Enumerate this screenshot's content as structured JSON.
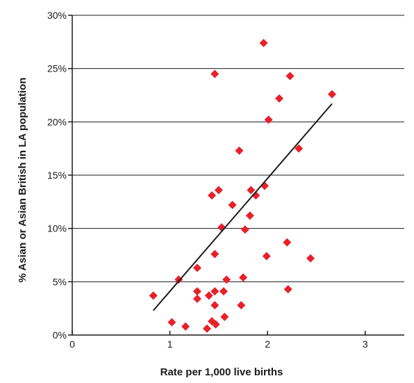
{
  "chart_data": {
    "type": "scatter",
    "title": "",
    "xlabel": "Rate per 1,000 live births",
    "ylabel": "% Asian or Asian British in LA population",
    "xlim": [
      0,
      3.4
    ],
    "ylim": [
      0,
      30
    ],
    "x_ticks": [
      0,
      1,
      2,
      3
    ],
    "x_tick_labels": [
      "0",
      "1",
      "2",
      "3"
    ],
    "y_ticks": [
      0,
      5,
      10,
      15,
      20,
      25,
      30
    ],
    "y_tick_labels": [
      "0%",
      "5%",
      "10%",
      "15%",
      "20%",
      "25%",
      "30%"
    ],
    "grid": "horizontal",
    "marker": "diamond",
    "marker_color": "#e8202a",
    "line_color": "#1a1a1a",
    "trendline": {
      "x": [
        0.83,
        2.66
      ],
      "y": [
        2.3,
        21.7
      ]
    },
    "points": [
      {
        "x": 0.83,
        "y": 3.7
      },
      {
        "x": 1.02,
        "y": 1.2
      },
      {
        "x": 1.09,
        "y": 5.2
      },
      {
        "x": 1.16,
        "y": 0.8
      },
      {
        "x": 1.28,
        "y": 6.3
      },
      {
        "x": 1.28,
        "y": 4.1
      },
      {
        "x": 1.28,
        "y": 3.4
      },
      {
        "x": 1.38,
        "y": 0.6
      },
      {
        "x": 1.4,
        "y": 3.7
      },
      {
        "x": 1.43,
        "y": 1.3
      },
      {
        "x": 1.43,
        "y": 13.1
      },
      {
        "x": 1.46,
        "y": 24.5
      },
      {
        "x": 1.46,
        "y": 7.6
      },
      {
        "x": 1.46,
        "y": 4.1
      },
      {
        "x": 1.46,
        "y": 2.8
      },
      {
        "x": 1.47,
        "y": 1.0
      },
      {
        "x": 1.5,
        "y": 13.6
      },
      {
        "x": 1.53,
        "y": 10.1
      },
      {
        "x": 1.55,
        "y": 4.1
      },
      {
        "x": 1.56,
        "y": 1.7
      },
      {
        "x": 1.58,
        "y": 5.2
      },
      {
        "x": 1.64,
        "y": 12.2
      },
      {
        "x": 1.71,
        "y": 17.3
      },
      {
        "x": 1.73,
        "y": 2.8
      },
      {
        "x": 1.75,
        "y": 5.4
      },
      {
        "x": 1.77,
        "y": 9.9
      },
      {
        "x": 1.82,
        "y": 11.2
      },
      {
        "x": 1.83,
        "y": 13.6
      },
      {
        "x": 1.88,
        "y": 13.1
      },
      {
        "x": 1.96,
        "y": 27.4
      },
      {
        "x": 1.97,
        "y": 14.0
      },
      {
        "x": 1.99,
        "y": 7.4
      },
      {
        "x": 2.01,
        "y": 20.2
      },
      {
        "x": 2.12,
        "y": 22.2
      },
      {
        "x": 2.2,
        "y": 8.7
      },
      {
        "x": 2.21,
        "y": 4.3
      },
      {
        "x": 2.23,
        "y": 24.3
      },
      {
        "x": 2.32,
        "y": 17.5
      },
      {
        "x": 2.44,
        "y": 7.2
      },
      {
        "x": 2.66,
        "y": 22.6
      }
    ]
  }
}
